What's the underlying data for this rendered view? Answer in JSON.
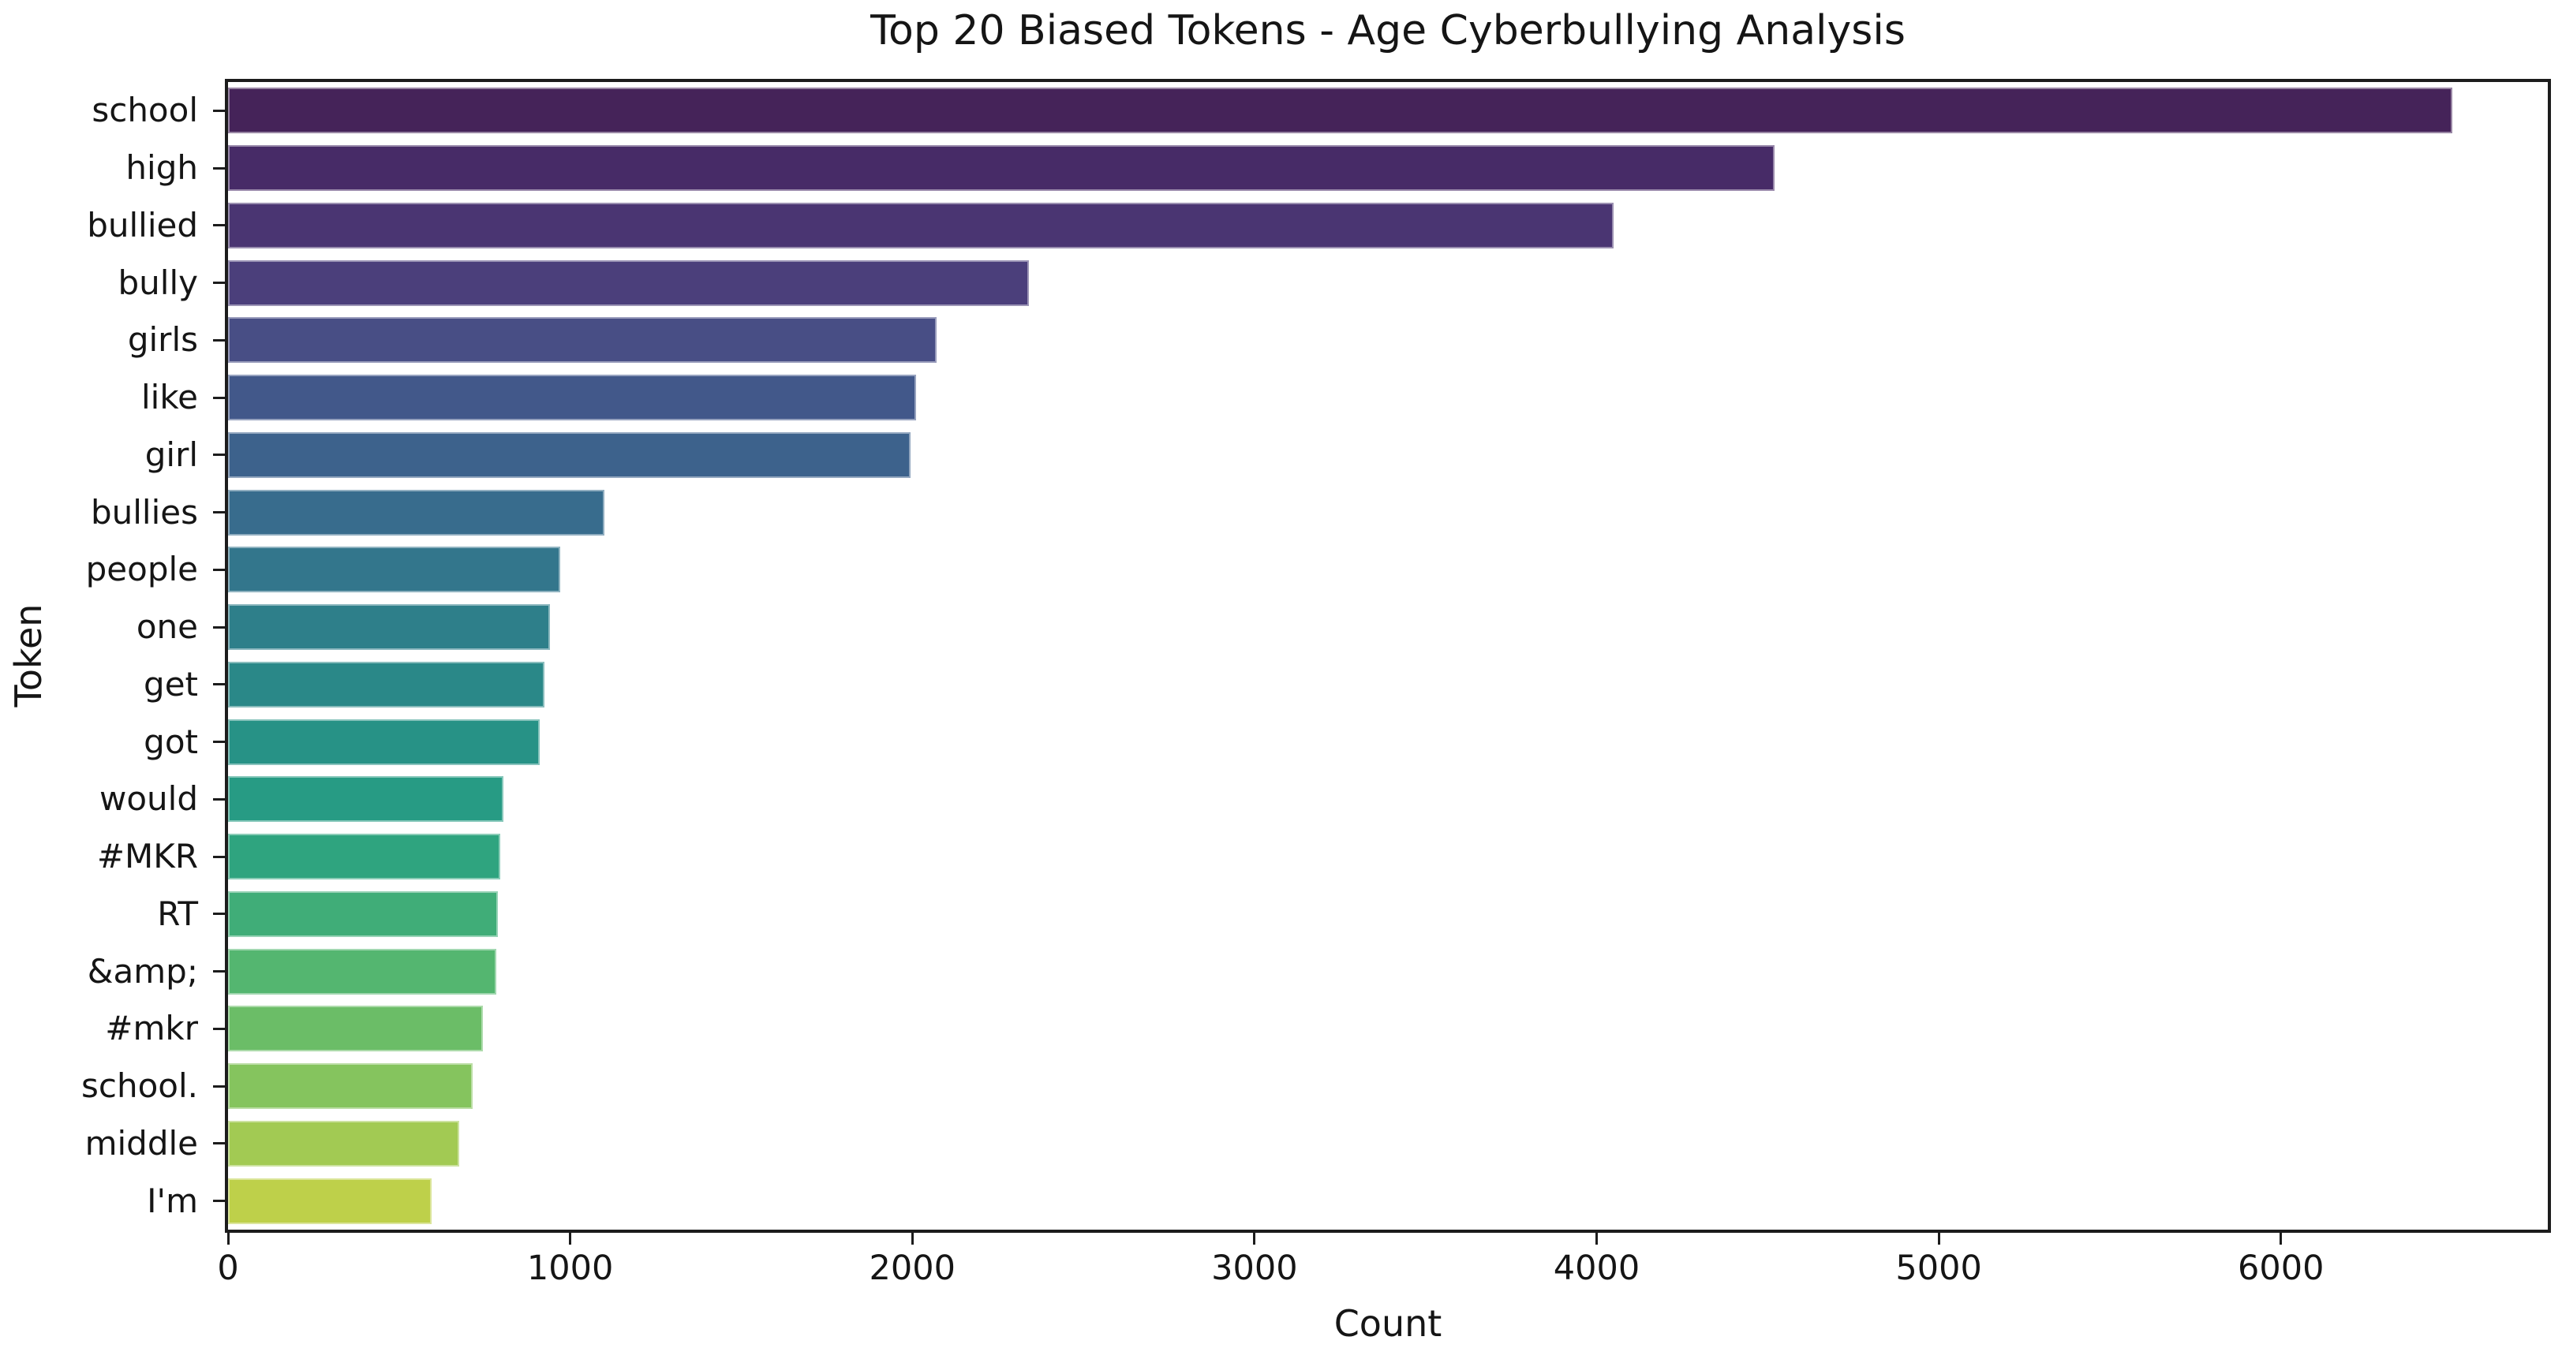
{
  "chart_data": {
    "type": "bar",
    "orientation": "horizontal",
    "title": "Top 20 Biased Tokens - Age Cyberbullying Analysis",
    "xlabel": "Count",
    "ylabel": "Token",
    "categories": [
      "school",
      "high",
      "bullied",
      "bully",
      "girls",
      "like",
      "girl",
      "bullies",
      "people",
      "one",
      "get",
      "got",
      "would",
      "#MKR",
      "RT",
      "&amp;",
      "#mkr",
      "school.",
      "middle",
      "I'm"
    ],
    "values": [
      6500,
      4520,
      4050,
      2340,
      2070,
      2010,
      1995,
      1100,
      970,
      940,
      925,
      910,
      805,
      795,
      788,
      785,
      745,
      715,
      675,
      595
    ],
    "bar_colors": [
      "#452359",
      "#472b67",
      "#4a3572",
      "#4b3f7b",
      "#484e85",
      "#42588a",
      "#3d628c",
      "#386c8d",
      "#33768c",
      "#2e7f8a",
      "#2a8888",
      "#279286",
      "#279b84",
      "#2fa47f",
      "#40ad78",
      "#54b670",
      "#6bbd67",
      "#85c45e",
      "#a2ca53",
      "#bed04a"
    ],
    "xlim": [
      0,
      6780
    ],
    "xticks": [
      0,
      1000,
      2000,
      3000,
      4000,
      5000,
      6000
    ],
    "grid": false,
    "background": "#ffffff",
    "bar_fraction": 0.8
  }
}
